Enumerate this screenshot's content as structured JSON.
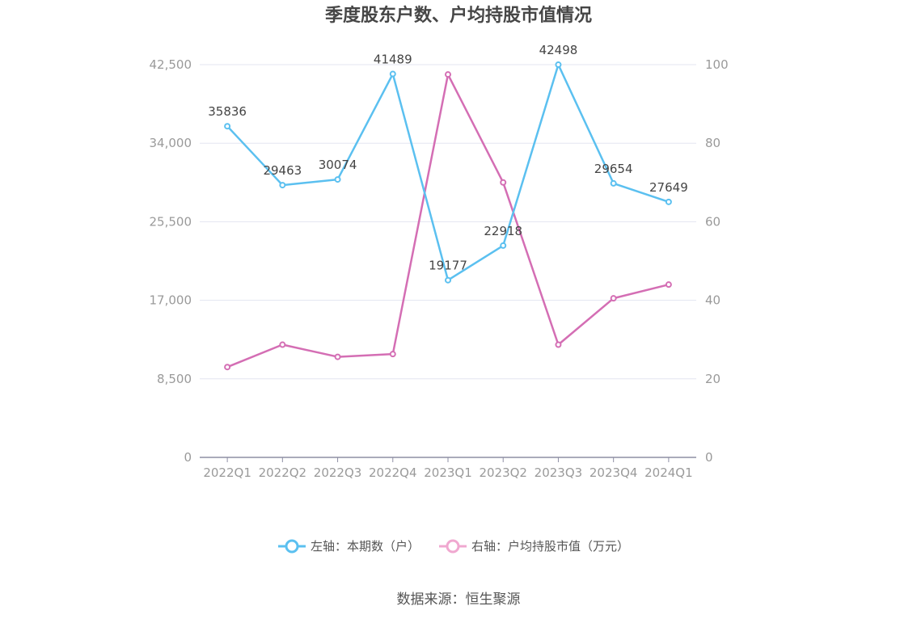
{
  "chart_data": {
    "type": "line",
    "title": "季度股东户数、户均持股市值情况",
    "categories": [
      "2022Q1",
      "2022Q2",
      "2022Q3",
      "2022Q4",
      "2023Q1",
      "2023Q2",
      "2023Q3",
      "2023Q4",
      "2024Q1"
    ],
    "series": [
      {
        "name": "左轴：本期数（户）",
        "axis": "left",
        "color": "#5bc0f0",
        "values": [
          35836,
          29463,
          30074,
          41489,
          19177,
          22918,
          42498,
          29654,
          27649
        ],
        "data_labels": [
          "35836",
          "29463",
          "30074",
          "41489",
          "19177",
          "22918",
          "42498",
          "29654",
          "27649"
        ]
      },
      {
        "name": "右轴：户均持股市值（万元）",
        "axis": "right",
        "color": "#d46eb4",
        "legend_color": "#f0a8d0",
        "values": [
          23.0,
          28.7,
          25.6,
          26.3,
          97.5,
          70.0,
          28.7,
          40.5,
          44.0
        ]
      }
    ],
    "y_left": {
      "ylim": [
        0,
        42500
      ],
      "ticks": [
        "0",
        "8,500",
        "17,000",
        "25,500",
        "34,000",
        "42,500"
      ],
      "tick_values": [
        0,
        8500,
        17000,
        25500,
        34000,
        42500
      ]
    },
    "y_right": {
      "ylim": [
        0,
        100
      ],
      "ticks": [
        "0",
        "20",
        "40",
        "60",
        "80",
        "100"
      ],
      "tick_values": [
        0,
        20,
        40,
        60,
        80,
        100
      ]
    },
    "grid": true,
    "legend_position": "bottom-center"
  },
  "source": "数据来源：恒生聚源"
}
